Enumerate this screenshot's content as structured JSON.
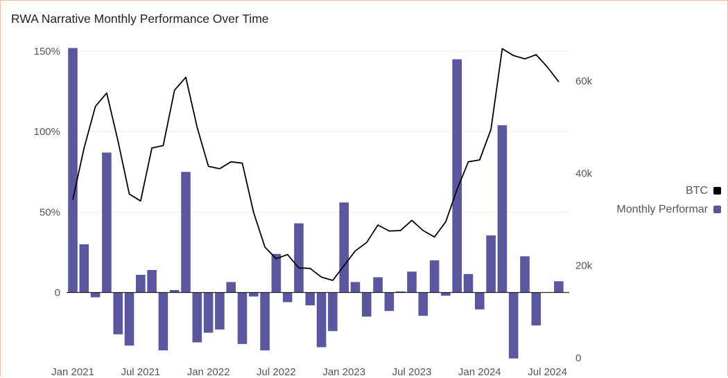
{
  "title": "RWA Narrative Monthly Performance Over Time",
  "chart_data": {
    "type": "bar+line",
    "title": "RWA Narrative Monthly Performance Over Time",
    "x_tick_labels": [
      "Jan 2021",
      "Jul 2021",
      "Jan 2022",
      "Jul 2022",
      "Jan 2023",
      "Jul 2023",
      "Jan 2024",
      "Jul 2024"
    ],
    "months": [
      "2021-01",
      "2021-02",
      "2021-03",
      "2021-04",
      "2021-05",
      "2021-06",
      "2021-07",
      "2021-08",
      "2021-09",
      "2021-10",
      "2021-11",
      "2021-12",
      "2022-01",
      "2022-02",
      "2022-03",
      "2022-04",
      "2022-05",
      "2022-06",
      "2022-07",
      "2022-08",
      "2022-09",
      "2022-10",
      "2022-11",
      "2022-12",
      "2023-01",
      "2023-02",
      "2023-03",
      "2023-04",
      "2023-05",
      "2023-06",
      "2023-07",
      "2023-08",
      "2023-09",
      "2023-10",
      "2023-11",
      "2023-12",
      "2024-01",
      "2024-02",
      "2024-03",
      "2024-04",
      "2024-05",
      "2024-06",
      "2024-07",
      "2024-08"
    ],
    "left_axis": {
      "ticks": [
        0,
        50,
        100,
        150
      ],
      "tick_labels": [
        "0",
        "50%",
        "100%",
        "150%"
      ],
      "range": [
        -41,
        152
      ]
    },
    "right_axis": {
      "ticks": [
        0,
        20000,
        40000,
        60000
      ],
      "tick_labels": [
        "0",
        "20k",
        "40k",
        "60k"
      ],
      "range": [
        0,
        68000
      ]
    },
    "series": [
      {
        "name": "Monthly Performance",
        "legend_label": "Monthly Performar",
        "type": "bar",
        "axis": "left",
        "color": "#5b579e",
        "values": [
          152,
          30,
          -3,
          87,
          -26,
          -33,
          11,
          14,
          -36,
          1.5,
          75,
          -31,
          -25,
          -23,
          6.5,
          -32,
          -2.5,
          -36,
          24,
          -6,
          43,
          -8,
          -34,
          -24,
          56,
          6.5,
          -15,
          9.5,
          -11.5,
          0.7,
          13,
          -14.5,
          20,
          -2,
          145,
          11.5,
          -10.5,
          35.5,
          104,
          -41,
          22.5,
          -20.5,
          7
        ],
        "bar_months": [
          "2021-01",
          "2021-02",
          "2021-03",
          "2021-04",
          "2021-05",
          "2021-06",
          "2021-07",
          "2021-08",
          "2021-09",
          "2021-10",
          "2021-11",
          "2021-12",
          "2022-01",
          "2022-02",
          "2022-03",
          "2022-04",
          "2022-05",
          "2022-06",
          "2022-07",
          "2022-08",
          "2022-09",
          "2022-10",
          "2022-11",
          "2022-12",
          "2023-01",
          "2023-02",
          "2023-03",
          "2023-04",
          "2023-05",
          "2023-06",
          "2023-07",
          "2023-08",
          "2023-09",
          "2023-10",
          "2023-11",
          "2023-12",
          "2024-01",
          "2024-02",
          "2024-03",
          "2024-04",
          "2024-05",
          "2024-06",
          "2024-08"
        ]
      },
      {
        "name": "BTC",
        "legend_label": "BTC",
        "type": "line",
        "axis": "right",
        "color": "#000000",
        "values": [
          34300,
          45500,
          54500,
          57400,
          47000,
          35500,
          34000,
          45500,
          46000,
          58000,
          60800,
          50000,
          41500,
          41000,
          42500,
          42200,
          31500,
          24000,
          21500,
          22400,
          19500,
          19400,
          17500,
          16800,
          20000,
          23200,
          25000,
          28800,
          27500,
          27600,
          29800,
          27600,
          26200,
          29500,
          36500,
          42500,
          42900,
          49500,
          67000,
          65500,
          64800,
          65700,
          63000,
          59800
        ]
      }
    ],
    "legend_position": "right",
    "grid": "horizontal"
  }
}
